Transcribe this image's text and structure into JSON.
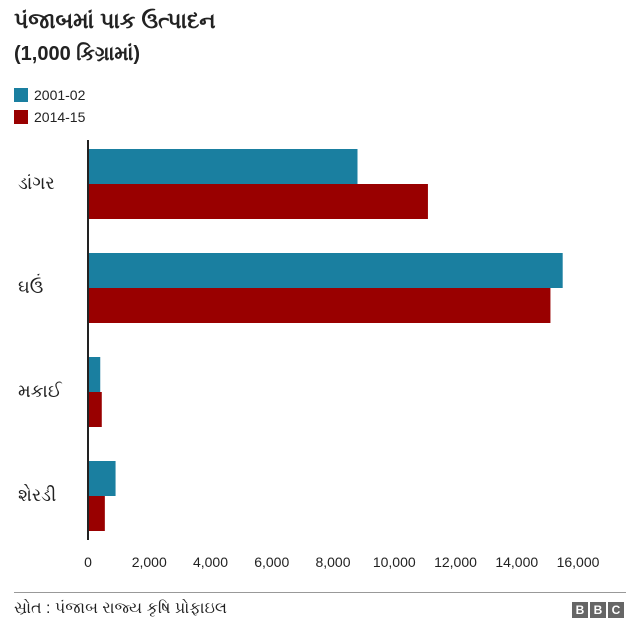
{
  "header": {
    "title": "પંજાબમાં પાક ઉત્પાદન",
    "subtitle": "(1,000 કિગ્રામાં)"
  },
  "footer": {
    "source": "સ્રોત : પંજાબ રાજ્ય કૃષિ પ્રોફાઇલ",
    "logo_letters": [
      "B",
      "B",
      "C"
    ]
  },
  "chart_data": {
    "type": "bar",
    "orientation": "horizontal",
    "categories": [
      "ડાંગર",
      "ઘઉં",
      "મકાઈ",
      "શેરડી"
    ],
    "series": [
      {
        "name": "2001-02",
        "color": "#1a7fa0",
        "values": [
          8800,
          15500,
          400,
          900
        ]
      },
      {
        "name": "2014-15",
        "color": "#990000",
        "values": [
          11100,
          15100,
          450,
          550
        ]
      }
    ],
    "xlim": [
      0,
      16000
    ],
    "xticks": [
      0,
      2000,
      4000,
      6000,
      8000,
      10000,
      12000,
      14000,
      16000
    ],
    "xtick_labels": [
      "0",
      "2,000",
      "4,000",
      "6,000",
      "8,000",
      "10,000",
      "12,000",
      "14,000",
      "16,000"
    ],
    "grid": false,
    "legend": "top-left"
  }
}
